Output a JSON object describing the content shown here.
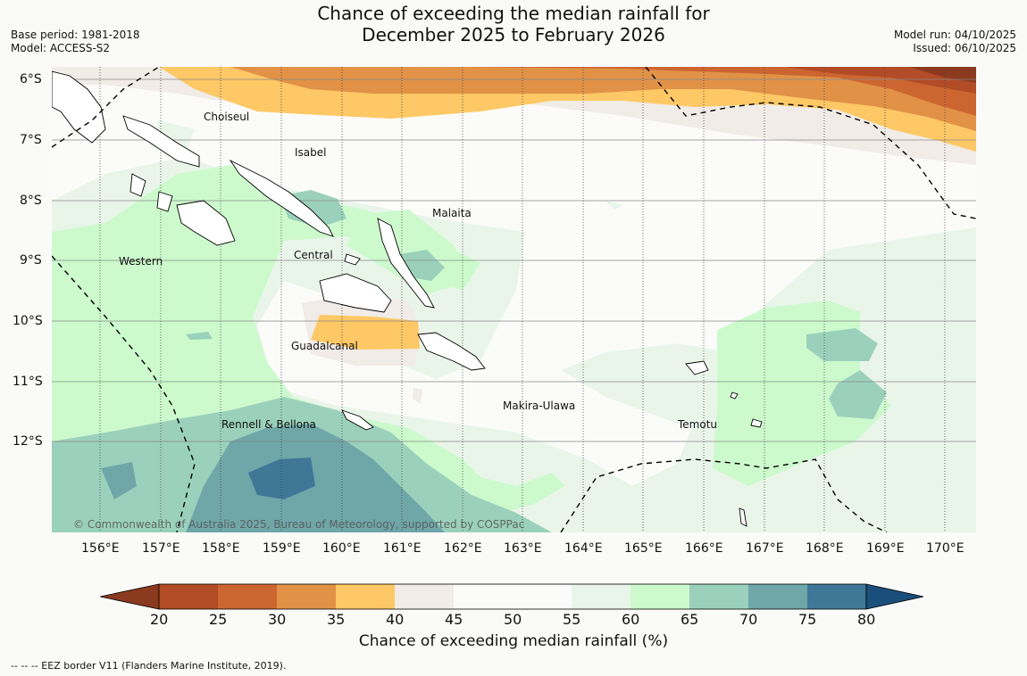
{
  "title": {
    "line1": "Chance of exceeding the median rainfall for",
    "line2": "December 2025 to February 2026"
  },
  "meta_left": {
    "base_period": "Base period: 1981-2018",
    "model": "Model: ACCESS-S2"
  },
  "meta_right": {
    "model_run": "Model run: 04/10/2025",
    "issued": "Issued: 06/10/2025"
  },
  "lat_labels": [
    "6°S",
    "7°S",
    "8°S",
    "9°S",
    "10°S",
    "11°S",
    "12°S"
  ],
  "lon_labels": [
    "156°E",
    "157°E",
    "158°E",
    "159°E",
    "160°E",
    "161°E",
    "162°E",
    "163°E",
    "164°E",
    "165°E",
    "166°E",
    "167°E",
    "168°E",
    "169°E",
    "170°E"
  ],
  "places": [
    "Choiseul",
    "Isabel",
    "Malaita",
    "Western",
    "Central",
    "Guadalcanal",
    "Makira-Ulawa",
    "Rennell & Bellona",
    "Temotu"
  ],
  "copyright": "© Commonwealth of Australia 2025, Bureau of Meteorology, supported by COSPPac",
  "colorbar": {
    "ticks": [
      "20",
      "25",
      "30",
      "35",
      "40",
      "45",
      "50",
      "55",
      "60",
      "65",
      "70",
      "75",
      "80"
    ],
    "colors": [
      "#8c3a1f",
      "#b24c26",
      "#cd6531",
      "#e19247",
      "#fdc865",
      "#f1ece7",
      "#fbfcfa",
      "#fbfcfa",
      "#eaf5ea",
      "#ccfacc",
      "#9bd1bc",
      "#6fa6a8",
      "#3f7797",
      "#1a4f7c"
    ],
    "label": "Chance of exceeding median rainfall (%)"
  },
  "footnote": "--  --  -- EEZ border V11 (Flanders Marine Institute, 2019)."
}
